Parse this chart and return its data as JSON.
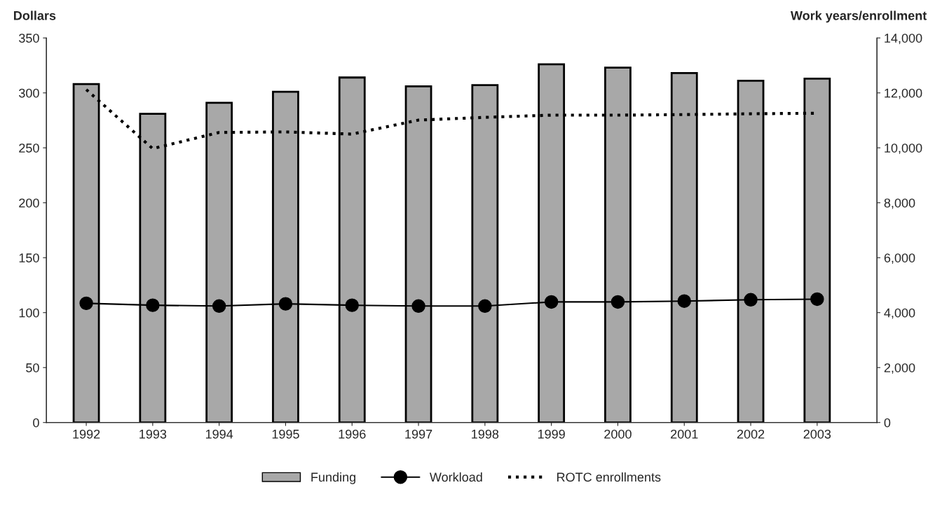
{
  "chart_data": {
    "type": "bar",
    "categories": [
      "1992",
      "1993",
      "1994",
      "1995",
      "1996",
      "1997",
      "1998",
      "1999",
      "2000",
      "2001",
      "2002",
      "2003"
    ],
    "ylabel": "Dollars",
    "y2label": "Work years/enrollment",
    "series": [
      {
        "name": "Funding",
        "color": "#a8a8a8",
        "values": [
          308,
          281,
          291,
          301,
          314,
          306,
          307,
          326,
          323,
          318,
          311,
          313
        ]
      },
      {
        "name": "Workload",
        "type": "line",
        "axis": "y2",
        "color": "#000000",
        "marker": "circle",
        "line_style": "solid",
        "values": [
          4340,
          4270,
          4240,
          4320,
          4270,
          4240,
          4240,
          4390,
          4390,
          4420,
          4470,
          4490
        ]
      },
      {
        "name": "ROTC enrollments",
        "type": "line",
        "axis": "y2",
        "color": "#000000",
        "marker": "none",
        "line_style": "dotted",
        "values": [
          12120,
          9970,
          10560,
          10580,
          10500,
          11010,
          11110,
          11190,
          11190,
          11210,
          11240,
          11260
        ]
      }
    ],
    "ylim": [
      0,
      350
    ],
    "yticks": [
      0,
      50,
      100,
      150,
      200,
      250,
      300,
      350
    ],
    "y2lim": [
      0,
      14000
    ],
    "y2ticks": [
      {
        "value": 0,
        "label": "0"
      },
      {
        "value": 2000,
        "label": "2,000"
      },
      {
        "value": 4000,
        "label": "4,000"
      },
      {
        "value": 6000,
        "label": "6,000"
      },
      {
        "value": 8000,
        "label": "8,000"
      },
      {
        "value": 10000,
        "label": "10,000"
      },
      {
        "value": 12000,
        "label": "12,000"
      },
      {
        "value": 14000,
        "label": "14,000"
      }
    ],
    "grid": false,
    "legend": "bottom"
  }
}
